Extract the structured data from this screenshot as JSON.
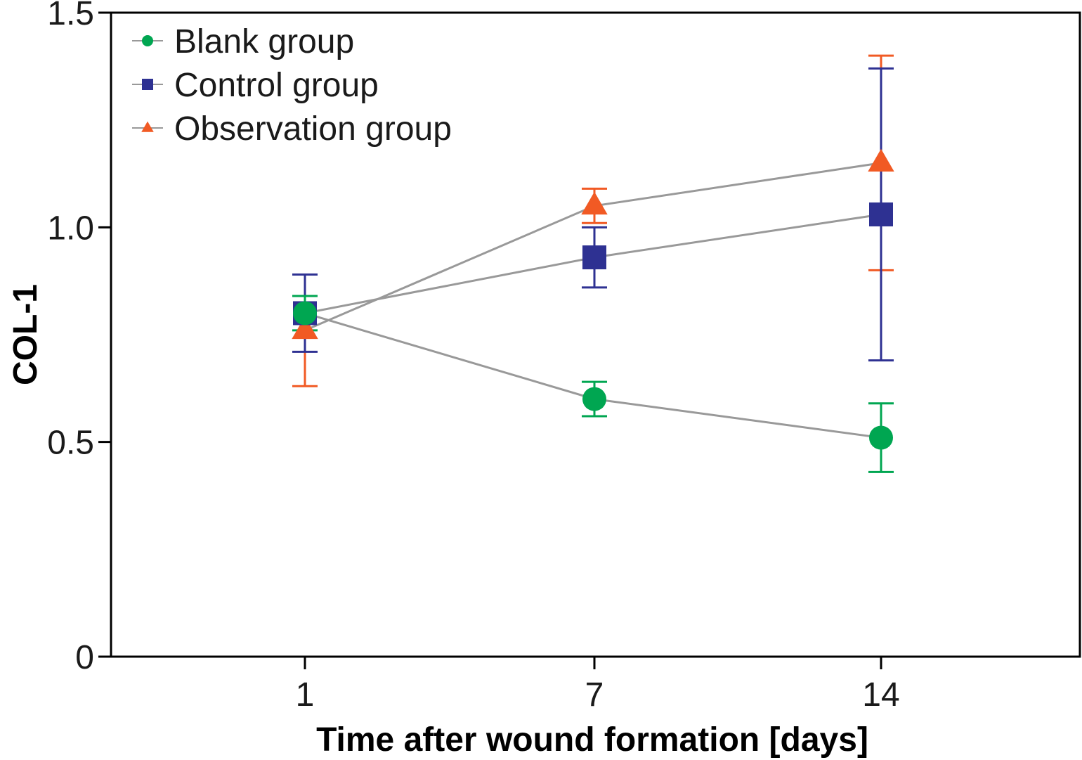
{
  "chart_data": {
    "type": "line",
    "title": "",
    "xlabel": "Time after wound formation [days]",
    "ylabel": "COL-1",
    "categories": [
      "1",
      "7",
      "14"
    ],
    "ylim": [
      0,
      1.5
    ],
    "yticks": [
      {
        "value": 0,
        "label": "0"
      },
      {
        "value": 0.5,
        "label": "0.5"
      },
      {
        "value": 1.0,
        "label": "1.0"
      },
      {
        "value": 1.5,
        "label": "1.5"
      }
    ],
    "legend_position": "top-left",
    "line_color": "#999999",
    "series": [
      {
        "name": "Blank group",
        "marker": "circle",
        "color": "#00a651",
        "values": [
          0.8,
          0.6,
          0.51
        ],
        "errors": [
          0.04,
          0.04,
          0.08
        ]
      },
      {
        "name": "Control group",
        "marker": "square",
        "color": "#2e3192",
        "values": [
          0.8,
          0.93,
          1.03
        ],
        "errors": [
          0.09,
          0.07,
          0.34
        ]
      },
      {
        "name": "Observation group",
        "marker": "triangle",
        "color": "#f15a24",
        "values": [
          0.76,
          1.05,
          1.15
        ],
        "errors": [
          0.13,
          0.04,
          0.25
        ]
      }
    ]
  }
}
